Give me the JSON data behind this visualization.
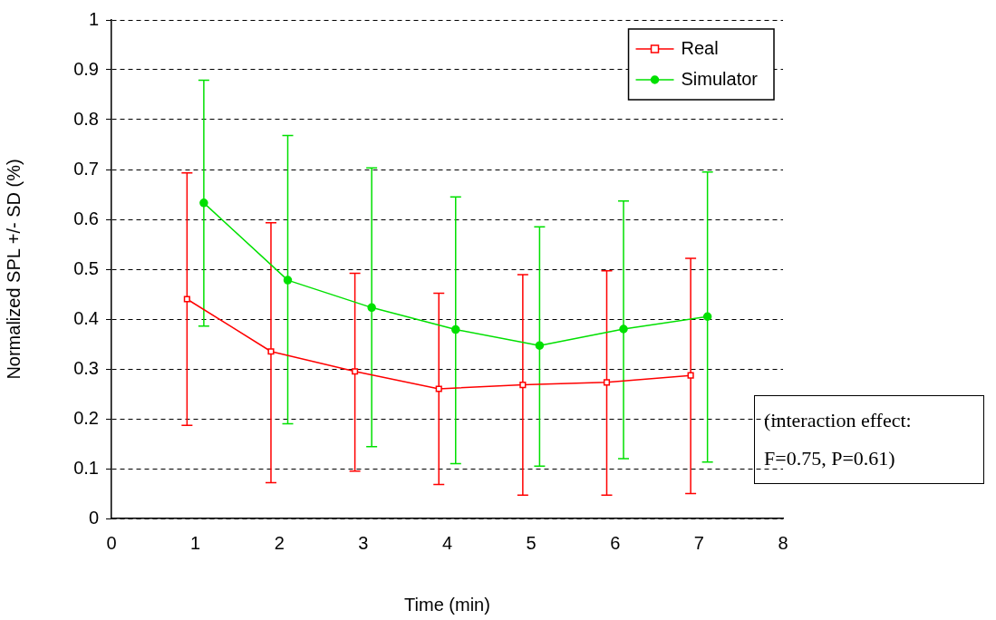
{
  "chart_data": {
    "type": "line",
    "xlabel": "Time (min)",
    "ylabel": "Normalized SPL +/- SD (%)",
    "xlim": [
      0,
      8
    ],
    "xticks": [
      0,
      1,
      2,
      3,
      4,
      5,
      6,
      7,
      8
    ],
    "ylim": [
      0,
      1
    ],
    "yticks": [
      0,
      0.1,
      0.2,
      0.3,
      0.4,
      0.5,
      0.6,
      0.7,
      0.8,
      0.9,
      1
    ],
    "grid": "y",
    "legend": "top right",
    "series": [
      {
        "name": "Real",
        "color": "#ff0000",
        "marker": "square",
        "x": [
          0.9,
          1.9,
          2.9,
          3.9,
          4.9,
          5.9,
          6.9
        ],
        "values": [
          0.44,
          0.335,
          0.295,
          0.26,
          0.268,
          0.273,
          0.287
        ],
        "errors": [
          [
            0.187,
            0.693
          ],
          [
            0.072,
            0.593
          ],
          [
            0.095,
            0.492
          ],
          [
            0.068,
            0.452
          ],
          [
            0.047,
            0.489
          ],
          [
            0.047,
            0.497
          ],
          [
            0.05,
            0.522
          ]
        ]
      },
      {
        "name": "Simulator",
        "color": "#00e000",
        "marker": "circle",
        "x": [
          1.1,
          2.1,
          3.1,
          4.1,
          5.1,
          6.1,
          7.1
        ],
        "values": [
          0.633,
          0.478,
          0.423,
          0.379,
          0.347,
          0.38,
          0.405
        ],
        "errors": [
          [
            0.386,
            0.879
          ],
          [
            0.19,
            0.768
          ],
          [
            0.144,
            0.703
          ],
          [
            0.11,
            0.645
          ],
          [
            0.105,
            0.585
          ],
          [
            0.12,
            0.637
          ],
          [
            0.113,
            0.695
          ]
        ]
      }
    ],
    "annotations": [
      "(interaction effect:",
      "F=0.75, P=0.61)"
    ]
  }
}
